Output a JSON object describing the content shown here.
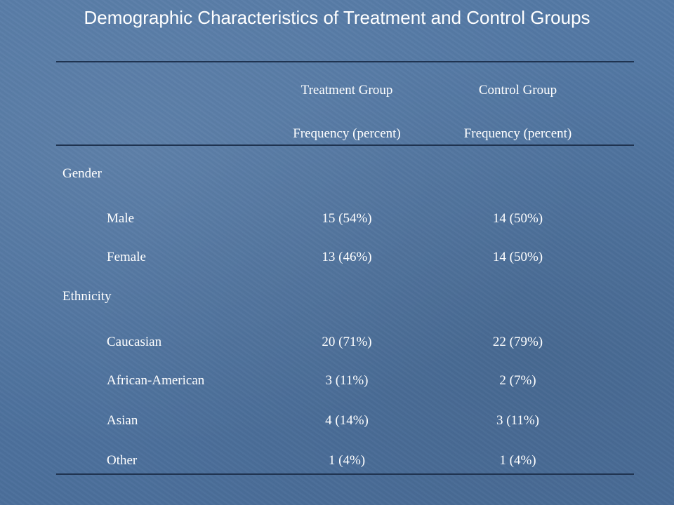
{
  "title": "Demographic Characteristics of Treatment and Control Groups",
  "header": {
    "treatment": "Treatment Group",
    "control": "Control Group",
    "treatment_sub": "Frequency (percent)",
    "control_sub": "Frequency (percent)"
  },
  "sections": [
    {
      "label": "Gender",
      "rows": [
        {
          "label": "Male",
          "treatment": "15 (54%)",
          "control": "14 (50%)"
        },
        {
          "label": "Female",
          "treatment": "13 (46%)",
          "control": "14 (50%)"
        }
      ]
    },
    {
      "label": "Ethnicity",
      "rows": [
        {
          "label": "Caucasian",
          "treatment": "20 (71%)",
          "control": "22 (79%)"
        },
        {
          "label": "African-American",
          "treatment": "3 (11%)",
          "control": "2 (7%)"
        },
        {
          "label": "Asian",
          "treatment": "4 (14%)",
          "control": "3 (11%)"
        },
        {
          "label": "Other",
          "treatment": "1 (4%)",
          "control": "1 (4%)"
        }
      ]
    }
  ]
}
